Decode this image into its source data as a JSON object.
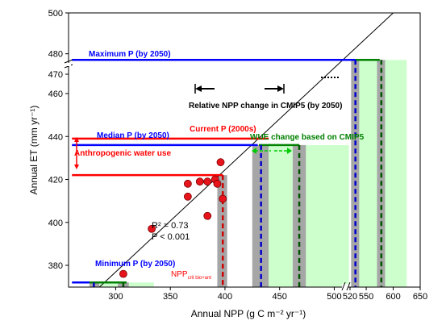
{
  "chart_data": {
    "type": "scatter",
    "xlabel": "Annual NPP (g C m⁻² yr⁻¹)",
    "ylabel": "Annual ET (mm yr⁻¹)",
    "x_ticks_left": [
      300,
      350,
      400,
      450,
      500
    ],
    "x_ticks_right": [
      520,
      550,
      600,
      650
    ],
    "y_ticks_lower": [
      380,
      400,
      420,
      440,
      460
    ],
    "y_ticks_upper": [
      470,
      480,
      500
    ],
    "x_break": [
      510,
      520
    ],
    "y_break": [
      465,
      475
    ],
    "points": [
      {
        "x": 307,
        "y": 376
      },
      {
        "x": 333,
        "y": 397
      },
      {
        "x": 366,
        "y": 412
      },
      {
        "x": 366,
        "y": 418
      },
      {
        "x": 377,
        "y": 419
      },
      {
        "x": 384,
        "y": 403
      },
      {
        "x": 384,
        "y": 419
      },
      {
        "x": 391,
        "y": 420
      },
      {
        "x": 393,
        "y": 418
      },
      {
        "x": 396,
        "y": 428
      },
      {
        "x": 398,
        "y": 411
      }
    ],
    "fit_line": {
      "x1": 277,
      "y1": 366,
      "x2": 600,
      "y2": 500
    },
    "r2_text": "R² = 0.73",
    "p_text": "P < 0.001",
    "hlines": [
      {
        "label": "Maximum P (by 2050)",
        "y": 477,
        "x0": 260,
        "x1": 530,
        "color": "#0000ff"
      },
      {
        "label": "Median P (by 2050)",
        "y": 436,
        "x0": 260,
        "x1": 430,
        "color": "#0000ff"
      },
      {
        "label": "Current P (2000s)",
        "y": 439,
        "x0": 260,
        "x1": 440,
        "color": "#ff0000"
      },
      {
        "label": "",
        "y": 422,
        "x0": 260,
        "x1": 398,
        "color": "#ff0000"
      },
      {
        "label": "Minimum P (by 2050)",
        "y": 372,
        "x0": 260,
        "x1": 305,
        "color": "#0000ff"
      }
    ],
    "green_segments": [
      {
        "x0": 530,
        "x1": 575,
        "y": 477
      },
      {
        "x0": 431,
        "x1": 468,
        "y": 436
      },
      {
        "x0": 276,
        "x1": 310,
        "y": 372
      }
    ],
    "gray_bands": [
      {
        "x0": 393,
        "x1": 402,
        "y0": 360,
        "y1": 422
      },
      {
        "x0": 425,
        "x1": 440,
        "y0": 360,
        "y1": 436
      },
      {
        "x0": 462,
        "x1": 474,
        "y0": 360,
        "y1": 436
      },
      {
        "x0": 522,
        "x1": 537,
        "y0": 360,
        "y1": 477
      },
      {
        "x0": 570,
        "x1": 585,
        "y0": 360,
        "y1": 477
      },
      {
        "x0": 276,
        "x1": 285,
        "y0": 360,
        "y1": 372
      },
      {
        "x0": 302,
        "x1": 312,
        "y0": 360,
        "y1": 372
      }
    ],
    "light_green_bands": [
      {
        "x0": 440,
        "x1": 518,
        "y0": 360,
        "y1": 436
      },
      {
        "x0": 537,
        "x1": 625,
        "y0": 360,
        "y1": 477
      },
      {
        "x0": 285,
        "x1": 335,
        "y0": 360,
        "y1": 372
      }
    ],
    "dashed_vlines": [
      {
        "x": 398,
        "y0": 360,
        "y1": 422,
        "color": "#cc0000"
      },
      {
        "x": 433,
        "y0": 360,
        "y1": 436,
        "color": "#0000cc"
      },
      {
        "x": 468,
        "y0": 360,
        "y1": 436,
        "color": "#005500"
      },
      {
        "x": 530,
        "y0": 360,
        "y1": 477,
        "color": "#0000cc"
      },
      {
        "x": 578,
        "y0": 360,
        "y1": 477,
        "color": "#005500"
      },
      {
        "x": 280,
        "y0": 360,
        "y1": 372,
        "color": "#0000cc"
      },
      {
        "x": 307,
        "y0": 360,
        "y1": 372,
        "color": "#005500"
      }
    ],
    "annotations": {
      "anthropogenic": "Anthropogenic water use",
      "npp_change": "Relative NPP change in CMIP5 (by 2050)",
      "wue_change": "WUE change based on CMIP5",
      "npp_crit": "NPP",
      "npp_crit_sub": "crit bio+ant"
    }
  },
  "colors": {
    "blue": "#0000ff",
    "red": "#ff0000",
    "dark_green": "#008000",
    "light_green": "#ccffcc",
    "gray": "#a6a6a6"
  }
}
